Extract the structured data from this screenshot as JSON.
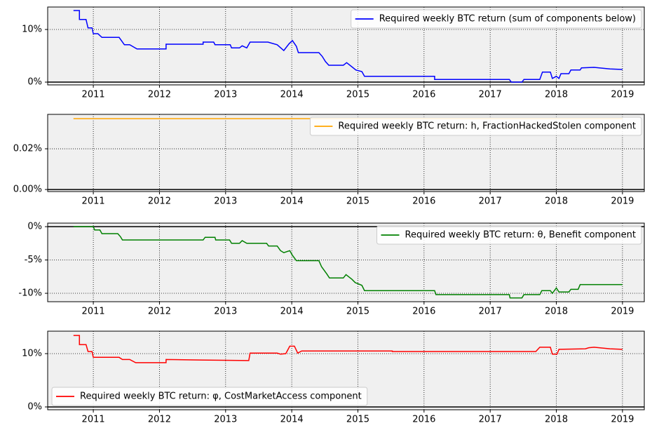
{
  "chart_data": [
    {
      "type": "line",
      "grid": true,
      "legend": "upper right",
      "hline": 0,
      "xlim": [
        2010.31,
        2019.33
      ],
      "xticks": [
        2011,
        2012,
        2013,
        2014,
        2015,
        2016,
        2017,
        2018,
        2019
      ],
      "ylim": [
        -0.53,
        14.27
      ],
      "yticks": [
        {
          "value": 0,
          "label": "0%"
        },
        {
          "value": 10,
          "label": "10%"
        }
      ],
      "series": [
        {
          "name": "Required weekly BTC return (sum of components below)",
          "color": "#0000ff",
          "x": [
            2010.7,
            2010.79,
            2010.79,
            2010.89,
            2010.92,
            2010.98,
            2011.0,
            2011.07,
            2011.13,
            2011.39,
            2011.47,
            2011.55,
            2011.66,
            2012.1,
            2012.1,
            2012.66,
            2012.66,
            2012.82,
            2012.84,
            2013.07,
            2013.09,
            2013.21,
            2013.25,
            2013.32,
            2013.37,
            2013.64,
            2013.78,
            2013.88,
            2013.96,
            2014.01,
            2014.07,
            2014.1,
            2014.41,
            2014.46,
            2014.51,
            2014.56,
            2014.78,
            2014.83,
            2014.92,
            2014.97,
            2015.06,
            2015.1,
            2016.16,
            2016.16,
            2017.29,
            2017.32,
            2017.48,
            2017.51,
            2017.75,
            2017.79,
            2017.91,
            2017.94,
            2018.0,
            2018.04,
            2018.07,
            2018.19,
            2018.22,
            2018.36,
            2018.38,
            2018.57,
            2018.81,
            2019.0
          ],
          "values": [
            13.6,
            13.6,
            11.9,
            11.9,
            10.3,
            10.3,
            9.2,
            9.2,
            8.5,
            8.5,
            7.1,
            7.1,
            6.3,
            6.3,
            7.2,
            7.2,
            7.6,
            7.6,
            7.1,
            7.1,
            6.5,
            6.5,
            6.9,
            6.5,
            7.6,
            7.6,
            7.1,
            6.0,
            7.3,
            7.9,
            6.8,
            5.6,
            5.6,
            4.9,
            3.9,
            3.2,
            3.2,
            3.7,
            2.8,
            2.3,
            2.0,
            1.1,
            1.1,
            0.5,
            0.5,
            0.0,
            0.0,
            0.5,
            0.5,
            1.9,
            1.9,
            0.7,
            1.1,
            0.7,
            1.6,
            1.6,
            2.3,
            2.3,
            2.7,
            2.8,
            2.5,
            2.4
          ]
        }
      ]
    },
    {
      "type": "line",
      "grid": true,
      "legend": "upper right",
      "hline": 0,
      "xlim": [
        2010.31,
        2019.33
      ],
      "xticks": [
        2011,
        2012,
        2013,
        2014,
        2015,
        2016,
        2017,
        2018,
        2019
      ],
      "ylim": [
        -0.001,
        0.0369
      ],
      "yticks": [
        {
          "value": 0,
          "label": "0.00%"
        },
        {
          "value": 0.02,
          "label": "0.02%"
        }
      ],
      "series": [
        {
          "name": "Required weekly BTC return: h, FractionHackedStolen component",
          "color": "#ffa500",
          "x": [
            2010.7,
            2019.0
          ],
          "values": [
            0.0348,
            0.0348
          ]
        }
      ]
    },
    {
      "type": "line",
      "grid": true,
      "legend": "upper right",
      "hline": 0,
      "xlim": [
        2010.31,
        2019.33
      ],
      "xticks": [
        2011,
        2012,
        2013,
        2014,
        2015,
        2016,
        2017,
        2018,
        2019
      ],
      "ylim": [
        -11.26,
        0.53
      ],
      "yticks": [
        {
          "value": 0,
          "label": "0%"
        },
        {
          "value": -5,
          "label": "-5%"
        },
        {
          "value": -10,
          "label": "-10%"
        }
      ],
      "series": [
        {
          "name": "Required weekly BTC return: θ, Benefit component",
          "color": "#008000",
          "x": [
            2010.7,
            2011.0,
            2011.02,
            2011.1,
            2011.13,
            2011.37,
            2011.41,
            2011.44,
            2012.66,
            2012.69,
            2012.84,
            2012.85,
            2013.06,
            2013.09,
            2013.21,
            2013.25,
            2013.32,
            2013.62,
            2013.65,
            2013.78,
            2013.83,
            2013.88,
            2013.97,
            2014.01,
            2014.07,
            2014.41,
            2014.45,
            2014.53,
            2014.57,
            2014.78,
            2014.82,
            2014.91,
            2014.96,
            2015.06,
            2015.1,
            2016.16,
            2016.18,
            2017.29,
            2017.3,
            2017.48,
            2017.51,
            2017.75,
            2017.78,
            2017.91,
            2017.94,
            2018.0,
            2018.04,
            2018.19,
            2018.22,
            2018.33,
            2018.36,
            2019.0
          ],
          "values": [
            0,
            0,
            -0.5,
            -0.5,
            -1.05,
            -1.05,
            -1.5,
            -2.0,
            -2.0,
            -1.6,
            -1.6,
            -2.0,
            -2.0,
            -2.5,
            -2.5,
            -2.1,
            -2.5,
            -2.5,
            -2.9,
            -2.9,
            -3.6,
            -3.9,
            -3.6,
            -4.3,
            -5.1,
            -5.1,
            -6.0,
            -7.1,
            -7.7,
            -7.7,
            -7.2,
            -7.9,
            -8.4,
            -8.8,
            -9.6,
            -9.6,
            -10.2,
            -10.2,
            -10.7,
            -10.7,
            -10.2,
            -10.2,
            -9.6,
            -9.6,
            -10.0,
            -9.2,
            -9.8,
            -9.8,
            -9.4,
            -9.4,
            -8.7,
            -8.7
          ]
        }
      ]
    },
    {
      "type": "line",
      "grid": true,
      "legend": "lower left",
      "hline": 0,
      "xlim": [
        2010.31,
        2019.33
      ],
      "xticks": [
        2011,
        2012,
        2013,
        2014,
        2015,
        2016,
        2017,
        2018,
        2019
      ],
      "ylim": [
        -0.53,
        14.21
      ],
      "yticks": [
        {
          "value": 0,
          "label": "0%"
        },
        {
          "value": 10,
          "label": "10%"
        }
      ],
      "series": [
        {
          "name": "Required weekly BTC return: φ, CostMarketAccess component",
          "color": "#ff0000",
          "x": [
            2010.7,
            2010.79,
            2010.79,
            2010.89,
            2010.92,
            2010.98,
            2011.0,
            2011.39,
            2011.44,
            2011.55,
            2011.64,
            2012.1,
            2012.1,
            2012.63,
            2013.35,
            2013.37,
            2013.78,
            2013.83,
            2013.91,
            2013.97,
            2014.04,
            2014.09,
            2014.15,
            2015.52,
            2015.52,
            2017.69,
            2017.75,
            2017.91,
            2017.94,
            2018.01,
            2018.04,
            2018.44,
            2018.49,
            2018.57,
            2018.81,
            2019.0
          ],
          "values": [
            13.4,
            13.4,
            11.7,
            11.7,
            10.4,
            10.4,
            9.3,
            9.3,
            8.9,
            8.9,
            8.3,
            8.3,
            8.9,
            8.8,
            8.7,
            10.1,
            10.1,
            9.9,
            10.0,
            11.4,
            11.4,
            10.1,
            10.5,
            10.5,
            10.4,
            10.4,
            11.2,
            11.2,
            9.9,
            9.9,
            10.8,
            10.9,
            11.1,
            11.2,
            10.9,
            10.8
          ]
        }
      ]
    }
  ]
}
